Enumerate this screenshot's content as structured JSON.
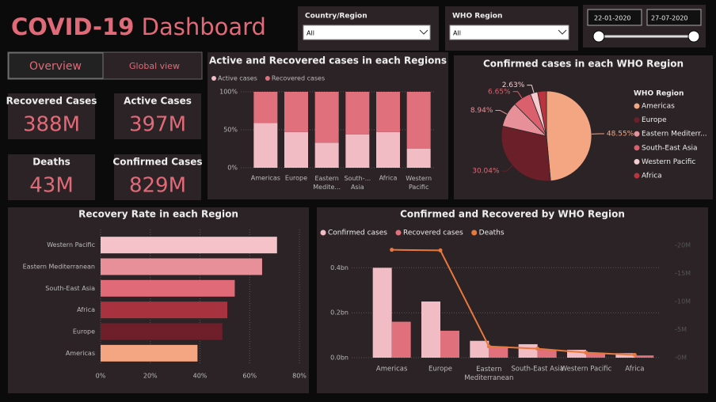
{
  "header": {
    "title_bold": "COVID-19",
    "title_rest": "Dashboard"
  },
  "tabs": [
    "Overview",
    "Global view"
  ],
  "filters": [
    {
      "label": "Country/Region",
      "value": "All"
    },
    {
      "label": "WHO Region",
      "value": "All"
    }
  ],
  "date_range": [
    "22-01-2020",
    "27-07-2020"
  ],
  "kpis": [
    {
      "label": "Recovered Cases",
      "value": "388M"
    },
    {
      "label": "Active Cases",
      "value": "397M"
    },
    {
      "label": "Deaths",
      "value": "43M"
    },
    {
      "label": "Confirmed Cases",
      "value": "829M"
    }
  ],
  "chart_data": [
    {
      "type": "stacked_bar",
      "title": "Active and Recovered cases in each Regions",
      "categories": [
        "Americas",
        "Europe",
        "Eastern Medite...",
        "South-... Asia",
        "Africa",
        "Western Pacific"
      ],
      "series": [
        {
          "name": "Active cases",
          "color": "#f2bcc4",
          "values": [
            59,
            47,
            33,
            44,
            47,
            25
          ]
        },
        {
          "name": "Recovered cases",
          "color": "#e0707c",
          "values": [
            41,
            53,
            67,
            56,
            53,
            75
          ]
        }
      ],
      "ylim": [
        0,
        100
      ],
      "yticks": [
        {
          "value": 0,
          "label": "0%"
        },
        {
          "value": 50,
          "label": "50%"
        },
        {
          "value": 100,
          "label": "100%"
        }
      ]
    },
    {
      "type": "pie",
      "title": "Confirmed cases in each WHO Region",
      "legend_title": "WHO Region",
      "categories": [
        "Americas",
        "Europe",
        "Eastern Mediterr...",
        "South-East Asia",
        "Western Pacific",
        "Africa"
      ],
      "values": [
        48.55,
        30.04,
        8.94,
        6.65,
        2.63,
        3.19
      ],
      "value_labels": [
        "48.55%",
        "30.04%",
        "8.94%",
        "6.65%",
        "2.63%",
        null
      ],
      "colors": [
        "#f4a582",
        "#6b1f28",
        "#e8909a",
        "#d9606c",
        "#f6ccd0",
        "#b8343f"
      ]
    },
    {
      "type": "hbar",
      "title": "Recovery Rate in each Region",
      "categories": [
        "Western Pacific",
        "Eastern Mediterranean",
        "South-East Asia",
        "Africa",
        "Europe",
        "Americas"
      ],
      "values": [
        71,
        65,
        54,
        51,
        49,
        39
      ],
      "colors": [
        "#f4c2c8",
        "#e8909a",
        "#e06a78",
        "#a8333e",
        "#6e1f2a",
        "#f4a582"
      ],
      "xlim": [
        0,
        80
      ],
      "xticks": [
        {
          "value": 0,
          "label": "0%"
        },
        {
          "value": 20,
          "label": "20%"
        },
        {
          "value": 40,
          "label": "40%"
        },
        {
          "value": 60,
          "label": "60%"
        },
        {
          "value": 80,
          "label": "80%"
        }
      ],
      "grid": true
    },
    {
      "type": "combo",
      "title": "Confirmed and Recovered by WHO Region",
      "categories": [
        "Americas",
        "Europe",
        "Eastern Mediterranean",
        "South-East Asia",
        "Western Pacific",
        "Africa"
      ],
      "series": [
        {
          "name": "Confirmed cases",
          "color": "#f2bcc4",
          "values": [
            0.4,
            0.25,
            0.075,
            0.06,
            0.035,
            0.02
          ]
        },
        {
          "name": "Recovered cases",
          "color": "#e0707c",
          "values": [
            0.16,
            0.12,
            0.05,
            0.035,
            0.02,
            0.01
          ]
        },
        {
          "name": "Deaths",
          "color": "#e8783c",
          "axis": "y2",
          "values": [
            19.2,
            19.1,
            2.0,
            1.6,
            0.9,
            0.5
          ]
        }
      ],
      "ylim": [
        0,
        0.5
      ],
      "yticks": [
        {
          "value": 0,
          "label": "0.0bn"
        },
        {
          "value": 0.2,
          "label": "0.2bn"
        },
        {
          "value": 0.4,
          "label": "0.4bn"
        }
      ],
      "y2lim": [
        0,
        20
      ],
      "y2ticks": [
        {
          "value": 0,
          "label": "0M"
        },
        {
          "value": 5,
          "label": "5M"
        },
        {
          "value": 10,
          "label": "10M"
        },
        {
          "value": 15,
          "label": "15M"
        },
        {
          "value": 20,
          "label": "20M"
        }
      ],
      "grid": true
    }
  ]
}
